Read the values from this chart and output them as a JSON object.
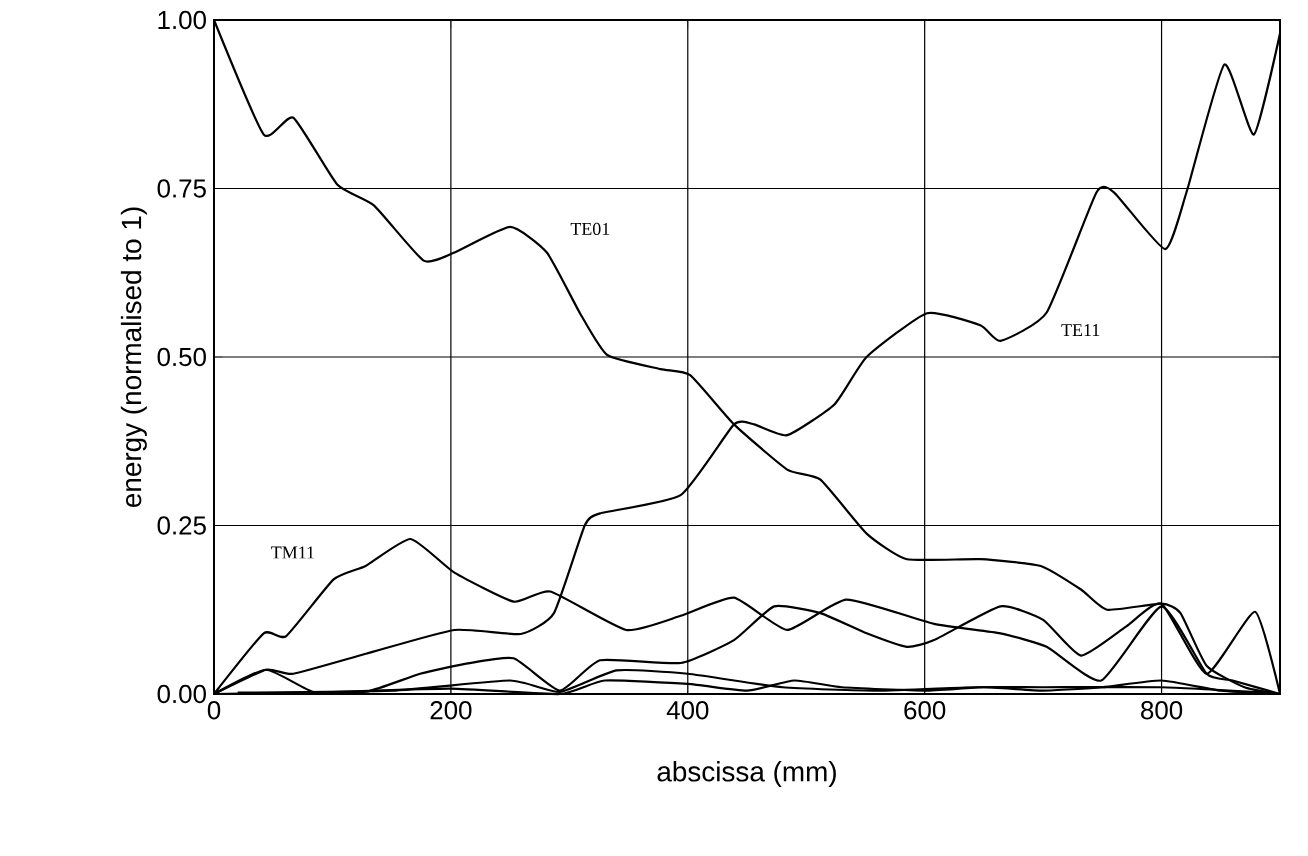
{
  "chart_data": {
    "type": "line",
    "xlabel": "abscissa (mm)",
    "ylabel": "energy (normalised to 1)",
    "xlim": [
      0,
      900
    ],
    "ylim": [
      0,
      1
    ],
    "xticks": [
      0,
      200,
      400,
      600,
      800
    ],
    "yticks": [
      {
        "value": 0,
        "label": "0.00"
      },
      {
        "value": 0.25,
        "label": "0.25"
      },
      {
        "value": 0.5,
        "label": "0.50"
      },
      {
        "value": 0.75,
        "label": "0.75"
      },
      {
        "value": 1,
        "label": "1.00"
      }
    ],
    "grid": true,
    "series": [
      {
        "name": "TE01",
        "color": "#000000",
        "x": [
          0,
          42,
          67,
          104,
          135,
          177,
          203,
          250,
          281,
          309,
          332,
          377,
          402,
          439,
          484,
          512,
          551,
          585,
          647,
          698,
          732,
          754,
          800,
          816,
          838,
          870,
          900
        ],
        "values": [
          1.0,
          0.83,
          0.855,
          0.756,
          0.725,
          0.643,
          0.655,
          0.693,
          0.655,
          0.565,
          0.503,
          0.482,
          0.473,
          0.4,
          0.333,
          0.318,
          0.238,
          0.2,
          0.2,
          0.19,
          0.155,
          0.125,
          0.134,
          0.12,
          0.042,
          0.01,
          0.0
        ]
      },
      {
        "name": "TE11",
        "color": "#000000",
        "x": [
          0,
          44,
          67,
          129,
          203,
          259,
          287,
          313,
          326,
          394,
          439,
          456,
          484,
          524,
          551,
          602,
          647,
          664,
          703,
          745,
          760,
          803,
          821,
          853,
          878,
          900
        ],
        "values": [
          0.0,
          0.036,
          0.03,
          0.06,
          0.095,
          0.089,
          0.12,
          0.25,
          0.268,
          0.295,
          0.4,
          0.4,
          0.384,
          0.43,
          0.5,
          0.565,
          0.547,
          0.524,
          0.566,
          0.744,
          0.744,
          0.66,
          0.744,
          0.934,
          0.83,
          0.98
        ]
      },
      {
        "name": "TM11",
        "color": "#000000",
        "x": [
          0,
          42,
          61,
          101,
          128,
          166,
          203,
          253,
          284,
          348,
          394,
          439,
          484,
          534,
          608,
          664,
          703,
          749,
          800,
          838,
          860,
          900
        ],
        "values": [
          0.0,
          0.09,
          0.086,
          0.17,
          0.19,
          0.23,
          0.18,
          0.137,
          0.152,
          0.095,
          0.116,
          0.143,
          0.095,
          0.14,
          0.104,
          0.09,
          0.07,
          0.02,
          0.13,
          0.03,
          0.02,
          0.0
        ]
      },
      {
        "color": "#000000",
        "x": [
          0,
          44,
          84,
          130,
          174,
          213,
          253,
          292,
          326,
          394,
          439,
          473,
          512,
          551,
          585,
          608,
          664,
          700,
          732,
          770,
          800,
          838,
          879,
          900
        ],
        "values": [
          0.0,
          0.036,
          0.003,
          0.004,
          0.03,
          0.045,
          0.053,
          0.005,
          0.05,
          0.046,
          0.08,
          0.13,
          0.12,
          0.09,
          0.07,
          0.08,
          0.13,
          0.11,
          0.057,
          0.1,
          0.134,
          0.03,
          0.122,
          0.0
        ]
      },
      {
        "color": "#000000",
        "x": [
          0,
          100,
          200,
          292,
          330,
          400,
          450,
          490,
          530,
          600,
          650,
          700,
          750,
          800,
          850,
          900
        ],
        "values": [
          0.0,
          0.003,
          0.008,
          0.0,
          0.02,
          0.015,
          0.005,
          0.02,
          0.01,
          0.005,
          0.01,
          0.005,
          0.01,
          0.02,
          0.005,
          0.0
        ]
      },
      {
        "color": "#000000",
        "x": [
          20,
          150,
          250,
          292,
          340,
          400,
          480,
          560,
          640,
          700,
          800,
          890
        ],
        "values": [
          0.002,
          0.005,
          0.02,
          0.003,
          0.035,
          0.03,
          0.01,
          0.005,
          0.01,
          0.01,
          0.01,
          0.002
        ]
      }
    ]
  }
}
